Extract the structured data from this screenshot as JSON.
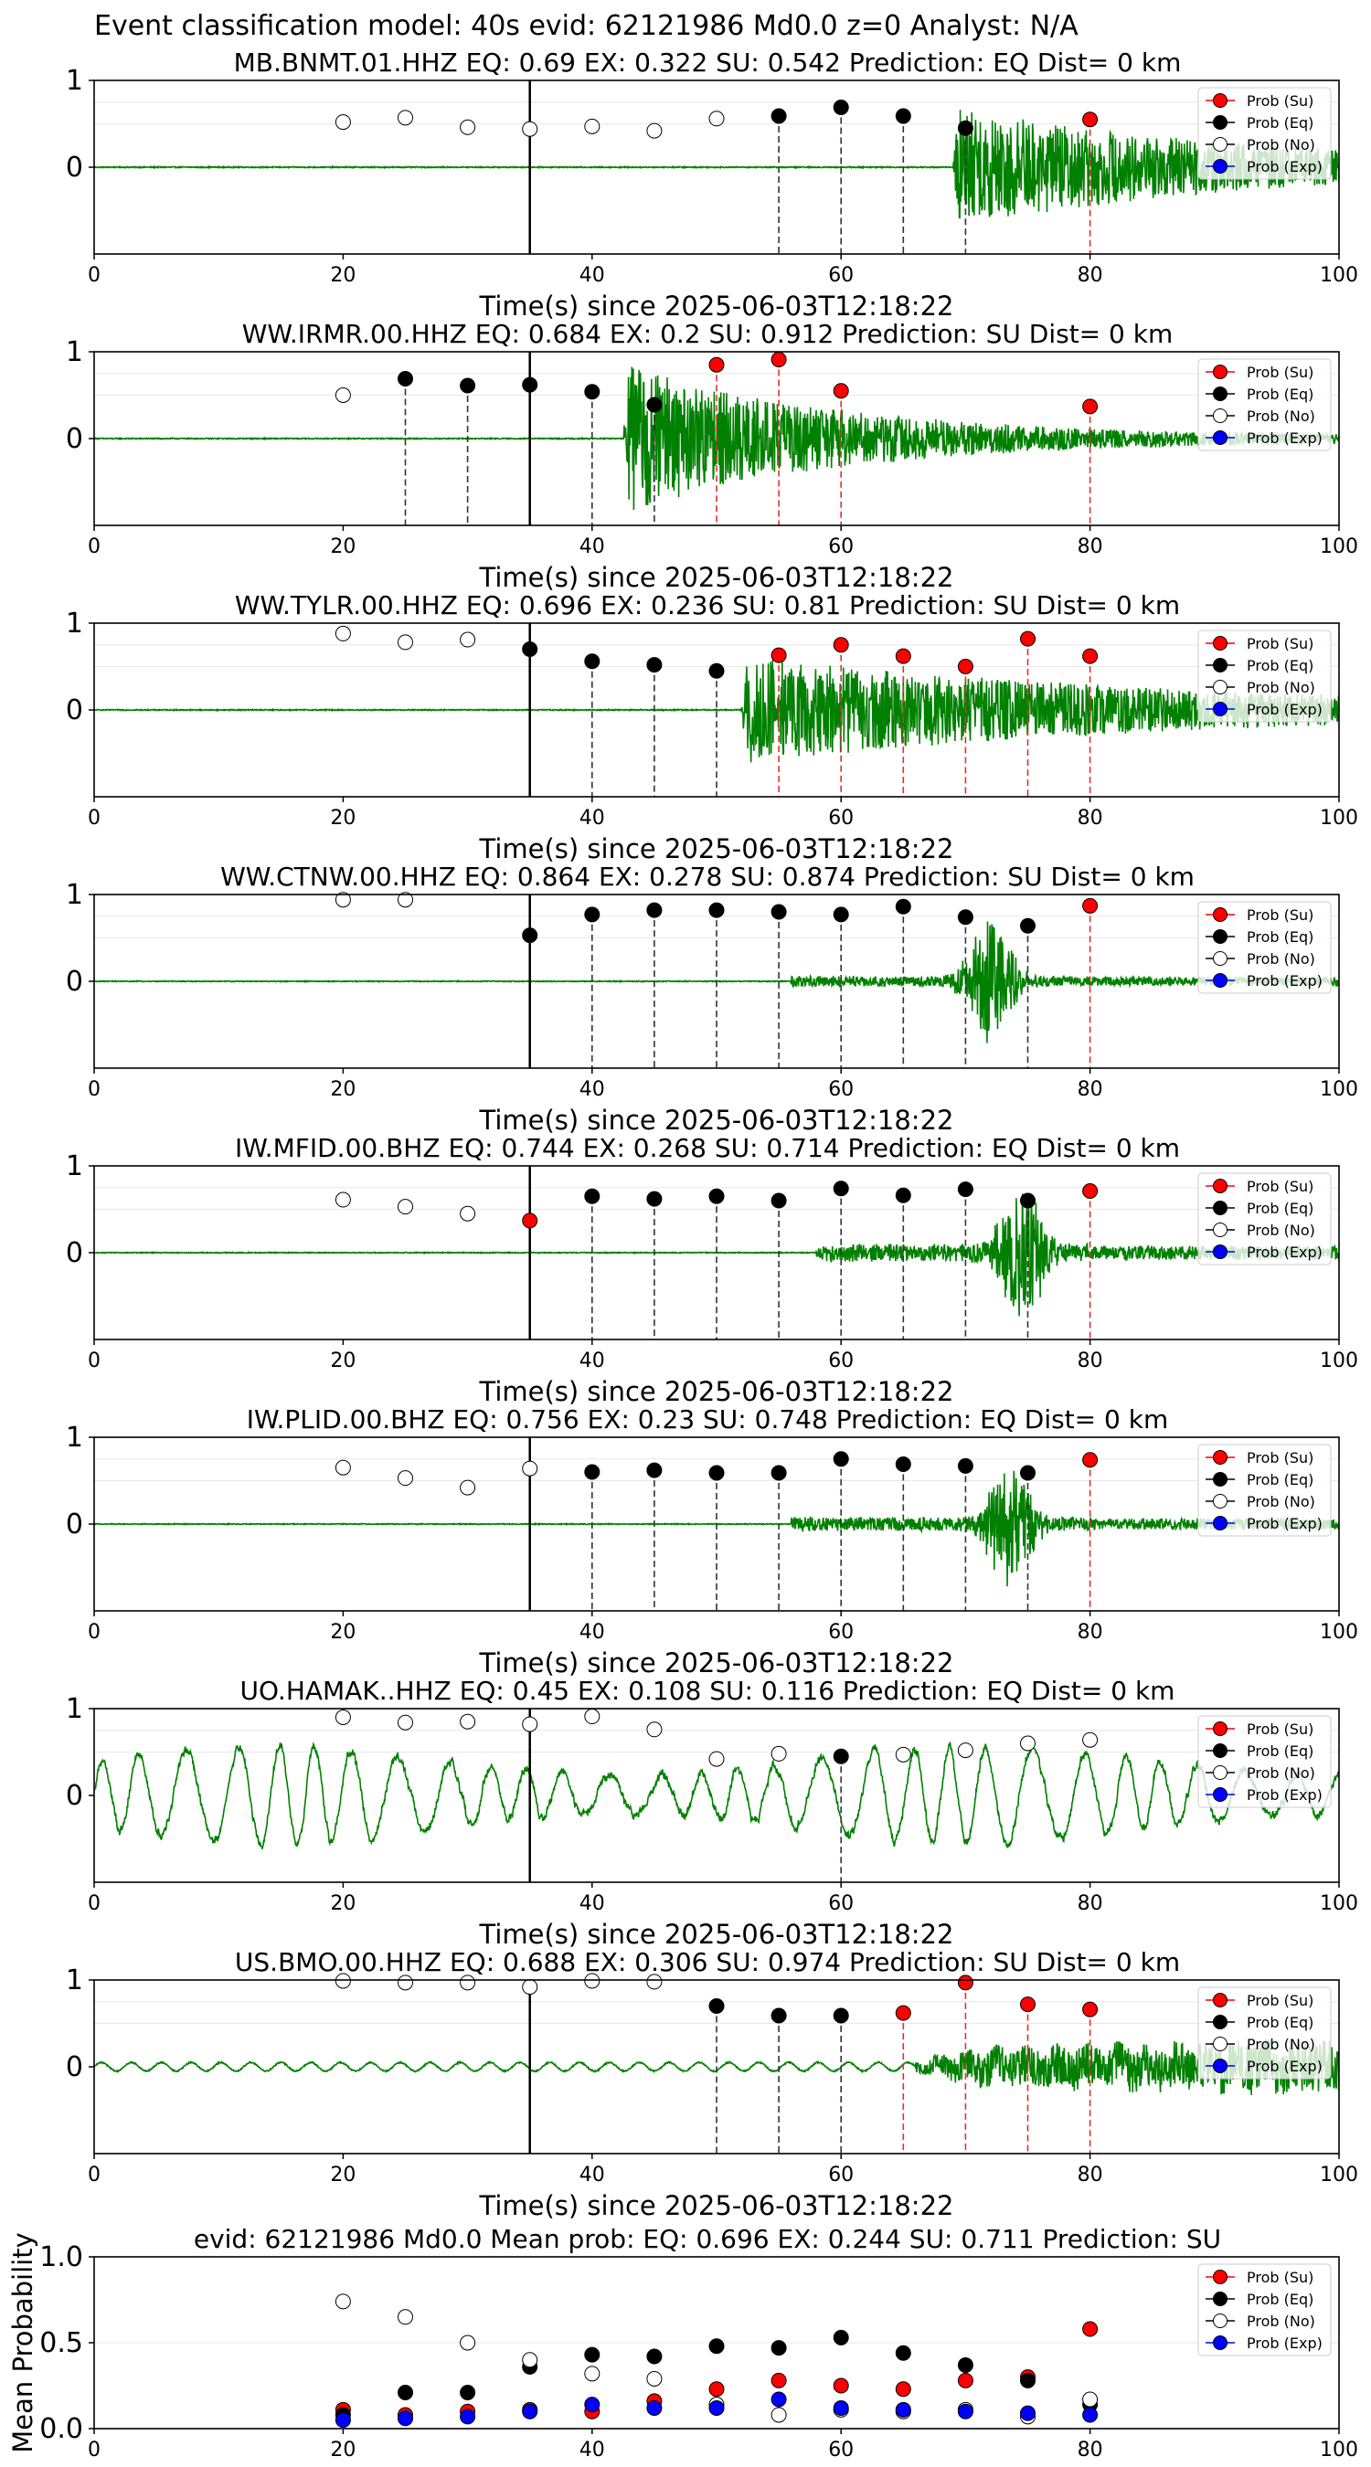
{
  "figure": {
    "suptitle": "Event classification model: 40s evid: 62121986 Md0.0 z=0 Analyst: N/A"
  },
  "legend": [
    "Prob (Su)",
    "Prob (Eq)",
    "Prob (No)",
    "Prob (Exp)"
  ],
  "colors": {
    "waveform": "#008000",
    "su": "#ff0000",
    "eq": "#000000",
    "no": "#ffffff",
    "exp": "#0000ff",
    "dashed_su": "#e03030",
    "dashed_eq": "#333333"
  },
  "chart_data": [
    {
      "type": "scatter",
      "title": "MB.BNMT.01.HHZ   EQ: 0.69   EX: 0.322   SU: 0.542   Prediction: EQ    Dist= 0 km",
      "xlabel": "Time(s) since 2025-06-03T12:18:22",
      "xlim": [
        0,
        100
      ],
      "ylim": [
        -1,
        1
      ],
      "x_ticks": [
        "0",
        "20",
        "40",
        "60",
        "80",
        "100"
      ],
      "y_ticks": [
        "1",
        "0"
      ],
      "waveform": {
        "style": "quiet",
        "onset": 69,
        "amp": 0.85,
        "decay": 0.045
      },
      "solid_line": 35,
      "points": [
        {
          "x": 20,
          "y": 0.52,
          "class": "no"
        },
        {
          "x": 25,
          "y": 0.57,
          "class": "no"
        },
        {
          "x": 30,
          "y": 0.46,
          "class": "no"
        },
        {
          "x": 35,
          "y": 0.44,
          "class": "no"
        },
        {
          "x": 40,
          "y": 0.47,
          "class": "no"
        },
        {
          "x": 45,
          "y": 0.42,
          "class": "no"
        },
        {
          "x": 50,
          "y": 0.56,
          "class": "no"
        },
        {
          "x": 55,
          "y": 0.59,
          "class": "eq"
        },
        {
          "x": 60,
          "y": 0.69,
          "class": "eq"
        },
        {
          "x": 65,
          "y": 0.59,
          "class": "eq"
        },
        {
          "x": 70,
          "y": 0.45,
          "class": "eq"
        },
        {
          "x": 80,
          "y": 0.55,
          "class": "su"
        }
      ]
    },
    {
      "type": "scatter",
      "title": "WW.IRMR.00.HHZ   EQ: 0.684  EX: 0.2  SU: 0.912   Prediction: SU    Dist= 0 km",
      "xlabel": "Time(s) since 2025-06-03T12:18:22",
      "xlim": [
        0,
        100
      ],
      "ylim": [
        -1,
        1
      ],
      "x_ticks": [
        "0",
        "20",
        "40",
        "60",
        "80",
        "100"
      ],
      "y_ticks": [
        "1",
        "0"
      ],
      "waveform": {
        "style": "quiet",
        "onset": 42.5,
        "amp": 1.05,
        "decay": 0.06
      },
      "solid_line": 35,
      "points": [
        {
          "x": 20,
          "y": 0.5,
          "class": "no"
        },
        {
          "x": 25,
          "y": 0.69,
          "class": "eq"
        },
        {
          "x": 30,
          "y": 0.61,
          "class": "eq"
        },
        {
          "x": 35,
          "y": 0.62,
          "class": "eq"
        },
        {
          "x": 40,
          "y": 0.54,
          "class": "eq"
        },
        {
          "x": 45,
          "y": 0.39,
          "class": "eq"
        },
        {
          "x": 50,
          "y": 0.85,
          "class": "su"
        },
        {
          "x": 55,
          "y": 0.91,
          "class": "su"
        },
        {
          "x": 60,
          "y": 0.55,
          "class": "su"
        },
        {
          "x": 80,
          "y": 0.37,
          "class": "su"
        }
      ]
    },
    {
      "type": "scatter",
      "title": "WW.TYLR.00.HHZ   EQ: 0.696  EX: 0.236  SU: 0.81   Prediction: SU    Dist= 0 km",
      "xlabel": "Time(s) since 2025-06-03T12:18:22",
      "xlim": [
        0,
        100
      ],
      "ylim": [
        -1,
        1
      ],
      "x_ticks": [
        "0",
        "20",
        "40",
        "60",
        "80",
        "100"
      ],
      "y_ticks": [
        "1",
        "0"
      ],
      "waveform": {
        "style": "quiet",
        "onset": 52,
        "amp": 0.75,
        "decay": 0.03
      },
      "solid_line": 35,
      "points": [
        {
          "x": 20,
          "y": 0.88,
          "class": "no"
        },
        {
          "x": 25,
          "y": 0.78,
          "class": "no"
        },
        {
          "x": 30,
          "y": 0.81,
          "class": "no"
        },
        {
          "x": 35,
          "y": 0.7,
          "class": "eq"
        },
        {
          "x": 40,
          "y": 0.56,
          "class": "eq"
        },
        {
          "x": 45,
          "y": 0.52,
          "class": "eq"
        },
        {
          "x": 50,
          "y": 0.45,
          "class": "eq"
        },
        {
          "x": 55,
          "y": 0.63,
          "class": "su"
        },
        {
          "x": 60,
          "y": 0.75,
          "class": "su"
        },
        {
          "x": 65,
          "y": 0.62,
          "class": "su"
        },
        {
          "x": 70,
          "y": 0.5,
          "class": "su"
        },
        {
          "x": 75,
          "y": 0.82,
          "class": "su"
        },
        {
          "x": 80,
          "y": 0.62,
          "class": "su"
        }
      ]
    },
    {
      "type": "scatter",
      "title": "WW.CTNW.00.HHZ   EQ: 0.864  EX: 0.278  SU: 0.874   Prediction: SU    Dist= 0 km",
      "xlabel": "Time(s) since 2025-06-03T12:18:22",
      "xlim": [
        0,
        100
      ],
      "ylim": [
        -1,
        1
      ],
      "x_ticks": [
        "0",
        "20",
        "40",
        "60",
        "80",
        "100"
      ],
      "y_ticks": [
        "1",
        "0"
      ],
      "waveform": {
        "style": "burst",
        "onset": 56,
        "amp": 0.12,
        "burst_at": 72,
        "burst_amp": 0.85
      },
      "solid_line": 35,
      "points": [
        {
          "x": 20,
          "y": 0.94,
          "class": "no"
        },
        {
          "x": 25,
          "y": 0.94,
          "class": "no"
        },
        {
          "x": 35,
          "y": 0.53,
          "class": "eq"
        },
        {
          "x": 40,
          "y": 0.77,
          "class": "eq"
        },
        {
          "x": 45,
          "y": 0.82,
          "class": "eq"
        },
        {
          "x": 50,
          "y": 0.82,
          "class": "eq"
        },
        {
          "x": 55,
          "y": 0.8,
          "class": "eq"
        },
        {
          "x": 60,
          "y": 0.77,
          "class": "eq"
        },
        {
          "x": 65,
          "y": 0.86,
          "class": "eq"
        },
        {
          "x": 70,
          "y": 0.74,
          "class": "eq"
        },
        {
          "x": 75,
          "y": 0.64,
          "class": "eq"
        },
        {
          "x": 80,
          "y": 0.87,
          "class": "su"
        }
      ]
    },
    {
      "type": "scatter",
      "title": "IW.MFID.00.BHZ   EQ: 0.744  EX: 0.268  SU: 0.714   Prediction: EQ    Dist= 0 km",
      "xlabel": "Time(s) since 2025-06-03T12:18:22",
      "xlim": [
        0,
        100
      ],
      "ylim": [
        -1,
        1
      ],
      "x_ticks": [
        "0",
        "20",
        "40",
        "60",
        "80",
        "100"
      ],
      "y_ticks": [
        "1",
        "0"
      ],
      "waveform": {
        "style": "burst",
        "onset": 58,
        "amp": 0.2,
        "burst_at": 74.5,
        "burst_amp": 0.95
      },
      "solid_line": 35,
      "points": [
        {
          "x": 20,
          "y": 0.61,
          "class": "no"
        },
        {
          "x": 25,
          "y": 0.53,
          "class": "no"
        },
        {
          "x": 30,
          "y": 0.45,
          "class": "no"
        },
        {
          "x": 35,
          "y": 0.37,
          "class": "su"
        },
        {
          "x": 40,
          "y": 0.65,
          "class": "eq"
        },
        {
          "x": 45,
          "y": 0.62,
          "class": "eq"
        },
        {
          "x": 50,
          "y": 0.65,
          "class": "eq"
        },
        {
          "x": 55,
          "y": 0.6,
          "class": "eq"
        },
        {
          "x": 60,
          "y": 0.74,
          "class": "eq"
        },
        {
          "x": 65,
          "y": 0.66,
          "class": "eq"
        },
        {
          "x": 70,
          "y": 0.73,
          "class": "eq"
        },
        {
          "x": 75,
          "y": 0.6,
          "class": "eq"
        },
        {
          "x": 80,
          "y": 0.71,
          "class": "su"
        }
      ]
    },
    {
      "type": "scatter",
      "title": "IW.PLID.00.BHZ   EQ: 0.756  EX: 0.23  SU: 0.748   Prediction: EQ    Dist= 0 km",
      "xlabel": "Time(s) since 2025-06-03T12:18:22",
      "xlim": [
        0,
        100
      ],
      "ylim": [
        -1,
        1
      ],
      "x_ticks": [
        "0",
        "20",
        "40",
        "60",
        "80",
        "100"
      ],
      "y_ticks": [
        "1",
        "0"
      ],
      "waveform": {
        "style": "burst",
        "onset": 56,
        "amp": 0.16,
        "burst_at": 73.5,
        "burst_amp": 0.85
      },
      "solid_line": 35,
      "points": [
        {
          "x": 20,
          "y": 0.65,
          "class": "no"
        },
        {
          "x": 25,
          "y": 0.53,
          "class": "no"
        },
        {
          "x": 30,
          "y": 0.42,
          "class": "no"
        },
        {
          "x": 35,
          "y": 0.64,
          "class": "no"
        },
        {
          "x": 40,
          "y": 0.6,
          "class": "eq"
        },
        {
          "x": 45,
          "y": 0.62,
          "class": "eq"
        },
        {
          "x": 50,
          "y": 0.59,
          "class": "eq"
        },
        {
          "x": 55,
          "y": 0.59,
          "class": "eq"
        },
        {
          "x": 60,
          "y": 0.75,
          "class": "eq"
        },
        {
          "x": 65,
          "y": 0.69,
          "class": "eq"
        },
        {
          "x": 70,
          "y": 0.67,
          "class": "eq"
        },
        {
          "x": 75,
          "y": 0.59,
          "class": "eq"
        },
        {
          "x": 80,
          "y": 0.74,
          "class": "su"
        }
      ]
    },
    {
      "type": "scatter",
      "title": "UO.HAMAK..HHZ   EQ: 0.45   EX: 0.108   SU: 0.116   Prediction: EQ    Dist= 0 km",
      "xlabel": "Time(s) since 2025-06-03T12:18:22",
      "xlim": [
        0,
        100
      ],
      "ylim": [
        -1,
        1
      ],
      "x_ticks": [
        "0",
        "20",
        "40",
        "60",
        "80",
        "100"
      ],
      "y_ticks": [
        "1",
        "0"
      ],
      "waveform": {
        "style": "oscillating",
        "amp": 0.55,
        "period": 3.4
      },
      "solid_line": 35,
      "points": [
        {
          "x": 20,
          "y": 0.9,
          "class": "no"
        },
        {
          "x": 25,
          "y": 0.84,
          "class": "no"
        },
        {
          "x": 30,
          "y": 0.85,
          "class": "no"
        },
        {
          "x": 35,
          "y": 0.82,
          "class": "no"
        },
        {
          "x": 40,
          "y": 0.91,
          "class": "no"
        },
        {
          "x": 45,
          "y": 0.76,
          "class": "no"
        },
        {
          "x": 50,
          "y": 0.42,
          "class": "no"
        },
        {
          "x": 55,
          "y": 0.48,
          "class": "no"
        },
        {
          "x": 60,
          "y": 0.45,
          "class": "eq"
        },
        {
          "x": 65,
          "y": 0.47,
          "class": "no"
        },
        {
          "x": 70,
          "y": 0.52,
          "class": "no"
        },
        {
          "x": 75,
          "y": 0.6,
          "class": "no"
        },
        {
          "x": 80,
          "y": 0.64,
          "class": "no"
        }
      ]
    },
    {
      "type": "scatter",
      "title": "US.BMO.00.HHZ   EQ: 0.688  EX: 0.306  SU: 0.974   Prediction: SU    Dist= 0 km",
      "xlabel": "Time(s) since 2025-06-03T12:18:22",
      "xlim": [
        0,
        100
      ],
      "ylim": [
        -1,
        1
      ],
      "x_ticks": [
        "0",
        "20",
        "40",
        "60",
        "80",
        "100"
      ],
      "y_ticks": [
        "1",
        "0"
      ],
      "waveform": {
        "style": "growing",
        "onset": 66,
        "amp": 0.4,
        "wobble": 0.05
      },
      "solid_line": 35,
      "points": [
        {
          "x": 20,
          "y": 0.99,
          "class": "no"
        },
        {
          "x": 25,
          "y": 0.97,
          "class": "no"
        },
        {
          "x": 30,
          "y": 0.97,
          "class": "no"
        },
        {
          "x": 35,
          "y": 0.92,
          "class": "no"
        },
        {
          "x": 40,
          "y": 0.99,
          "class": "no"
        },
        {
          "x": 45,
          "y": 0.98,
          "class": "no"
        },
        {
          "x": 50,
          "y": 0.7,
          "class": "eq"
        },
        {
          "x": 55,
          "y": 0.59,
          "class": "eq"
        },
        {
          "x": 60,
          "y": 0.59,
          "class": "eq"
        },
        {
          "x": 65,
          "y": 0.62,
          "class": "su"
        },
        {
          "x": 70,
          "y": 0.97,
          "class": "su"
        },
        {
          "x": 75,
          "y": 0.72,
          "class": "su"
        },
        {
          "x": 80,
          "y": 0.66,
          "class": "su"
        }
      ]
    },
    {
      "type": "scatter",
      "title": "evid: 62121986  Md0.0    Mean prob:    EQ: 0.696  EX: 0.244  SU: 0.711   Prediction: SU",
      "xlabel": "",
      "ylabel": "Mean Probability",
      "xlim": [
        0,
        100
      ],
      "ylim": [
        0,
        1
      ],
      "x_ticks": [
        "0",
        "20",
        "40",
        "60",
        "80",
        "100"
      ],
      "y_ticks": [
        "0.0",
        "0.5",
        "1.0"
      ],
      "series": [
        {
          "name": "Prob (Su)",
          "class": "su",
          "x": [
            20,
            25,
            30,
            35,
            40,
            45,
            50,
            55,
            60,
            65,
            70,
            75,
            80
          ],
          "y": [
            0.11,
            0.08,
            0.1,
            0.11,
            0.1,
            0.16,
            0.23,
            0.28,
            0.25,
            0.23,
            0.28,
            0.3,
            0.58
          ]
        },
        {
          "name": "Prob (Eq)",
          "class": "eq",
          "x": [
            20,
            25,
            30,
            35,
            40,
            45,
            50,
            55,
            60,
            65,
            70,
            75,
            80
          ],
          "y": [
            0.08,
            0.21,
            0.21,
            0.36,
            0.43,
            0.42,
            0.48,
            0.47,
            0.53,
            0.44,
            0.37,
            0.28,
            0.14
          ]
        },
        {
          "name": "Prob (No)",
          "class": "no",
          "x": [
            20,
            25,
            30,
            35,
            40,
            45,
            50,
            55,
            60,
            65,
            70,
            75,
            80
          ],
          "y": [
            0.74,
            0.65,
            0.5,
            0.4,
            0.32,
            0.29,
            0.14,
            0.08,
            0.11,
            0.1,
            0.11,
            0.07,
            0.17
          ]
        },
        {
          "name": "Prob (Exp)",
          "class": "exp",
          "x": [
            20,
            25,
            30,
            35,
            40,
            45,
            50,
            55,
            60,
            65,
            70,
            75,
            80
          ],
          "y": [
            0.05,
            0.06,
            0.07,
            0.1,
            0.14,
            0.12,
            0.12,
            0.17,
            0.12,
            0.11,
            0.1,
            0.09,
            0.08
          ]
        }
      ]
    }
  ]
}
